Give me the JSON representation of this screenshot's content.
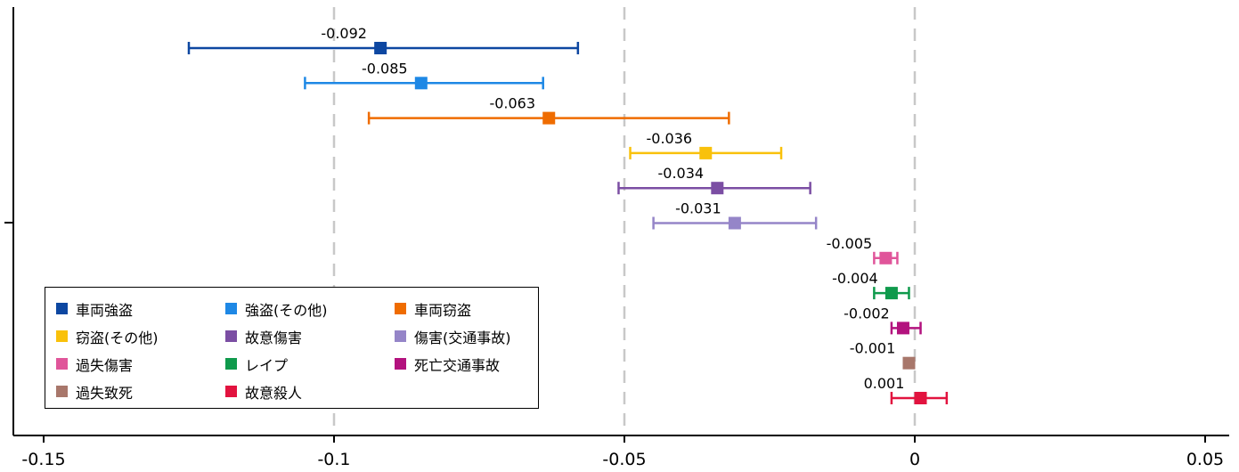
{
  "chart_data": {
    "type": "forest",
    "orientation": "horizontal",
    "xlim": [
      -0.15,
      0.05
    ],
    "x_ticks": [
      "-0.15",
      "-0.1",
      "-0.05",
      "0",
      "0.05"
    ],
    "x_tick_values": [
      -0.15,
      -0.1,
      -0.05,
      0,
      0.05
    ],
    "reference_lines": [
      -0.1,
      -0.05,
      0
    ],
    "grid": false,
    "legend_position": "lower-left",
    "series": [
      {
        "name": "車両強盗",
        "label": "-0.092",
        "value": -0.092,
        "ci": [
          -0.125,
          -0.058
        ],
        "color": "#0d47a1"
      },
      {
        "name": "強盗(その他)",
        "label": "-0.085",
        "value": -0.085,
        "ci": [
          -0.105,
          -0.064
        ],
        "color": "#1e88e5"
      },
      {
        "name": "車両窃盗",
        "label": "-0.063",
        "value": -0.063,
        "ci": [
          -0.094,
          -0.032
        ],
        "color": "#ef6c00"
      },
      {
        "name": "窃盗(その他)",
        "label": "-0.036",
        "value": -0.036,
        "ci": [
          -0.049,
          -0.023
        ],
        "color": "#f9c10b"
      },
      {
        "name": "故意傷害",
        "label": "-0.034",
        "value": -0.034,
        "ci": [
          -0.051,
          -0.018
        ],
        "color": "#7b4ea3"
      },
      {
        "name": "傷害(交通事故)",
        "label": "-0.031",
        "value": -0.031,
        "ci": [
          -0.045,
          -0.017
        ],
        "color": "#9585c8"
      },
      {
        "name": "過失傷害",
        "label": "-0.005",
        "value": -0.005,
        "ci": [
          -0.007,
          -0.003
        ],
        "color": "#e0559a"
      },
      {
        "name": "レイプ",
        "label": "-0.004",
        "value": -0.004,
        "ci": [
          -0.007,
          -0.001
        ],
        "color": "#0f9a4c"
      },
      {
        "name": "死亡交通事故",
        "label": "-0.002",
        "value": -0.002,
        "ci": [
          -0.004,
          0.001
        ],
        "color": "#b3127e"
      },
      {
        "name": "過失致死",
        "label": "-0.001",
        "value": -0.001,
        "ci": [
          -0.001,
          -0.001
        ],
        "color": "#a8776b"
      },
      {
        "name": "故意殺人",
        "label": "0.001",
        "value": 0.001,
        "ci": [
          -0.004,
          0.0055
        ],
        "color": "#e2133f"
      }
    ]
  }
}
